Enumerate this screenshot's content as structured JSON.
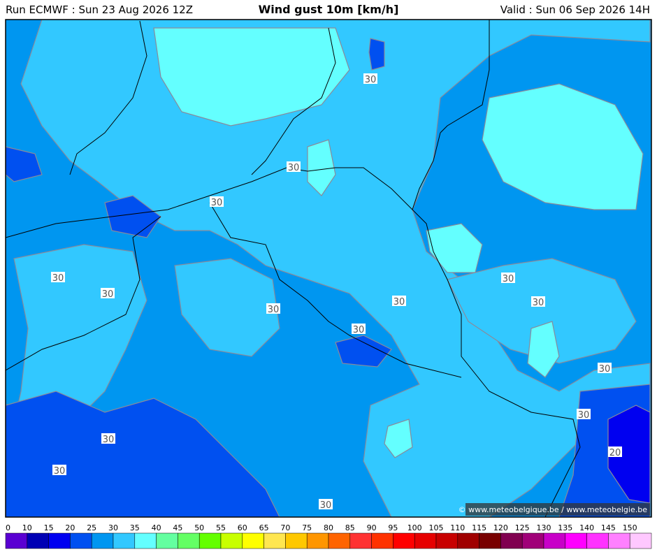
{
  "header": {
    "run": "Run ECMWF : Sun 23 Aug 2026 12Z",
    "title": "Wind gust 10m [km/h]",
    "valid": "Valid : Sun 06 Sep 2026 14H"
  },
  "contour_labels": [
    "30",
    "30",
    "30",
    "30",
    "30",
    "30",
    "30",
    "30",
    "30",
    "30",
    "30",
    "30",
    "30",
    "20",
    "30",
    "30"
  ],
  "credit": "© www.meteobelgique.be / www.meteobelgie.be",
  "scale": {
    "labels": [
      "0",
      "10",
      "15",
      "20",
      "25",
      "30",
      "35",
      "40",
      "45",
      "50",
      "55",
      "60",
      "65",
      "70",
      "75",
      "80",
      "85",
      "90",
      "95",
      "100",
      "105",
      "110",
      "115",
      "120",
      "125",
      "130",
      "135",
      "140",
      "145",
      "150"
    ],
    "colors": [
      "#5a00d2",
      "#0000b4",
      "#0000f0",
      "#0050f0",
      "#0096f0",
      "#32c8ff",
      "#64ffff",
      "#64ffa0",
      "#64ff64",
      "#64ff00",
      "#c8ff00",
      "#ffff00",
      "#ffe650",
      "#ffc800",
      "#ff9600",
      "#ff6400",
      "#ff3232",
      "#ff3200",
      "#ff0000",
      "#e60000",
      "#c80000",
      "#a00000",
      "#780000",
      "#800050",
      "#a00078",
      "#c800c8",
      "#ff00ff",
      "#ff32ff",
      "#ff80ff",
      "#ffc8ff"
    ]
  }
}
